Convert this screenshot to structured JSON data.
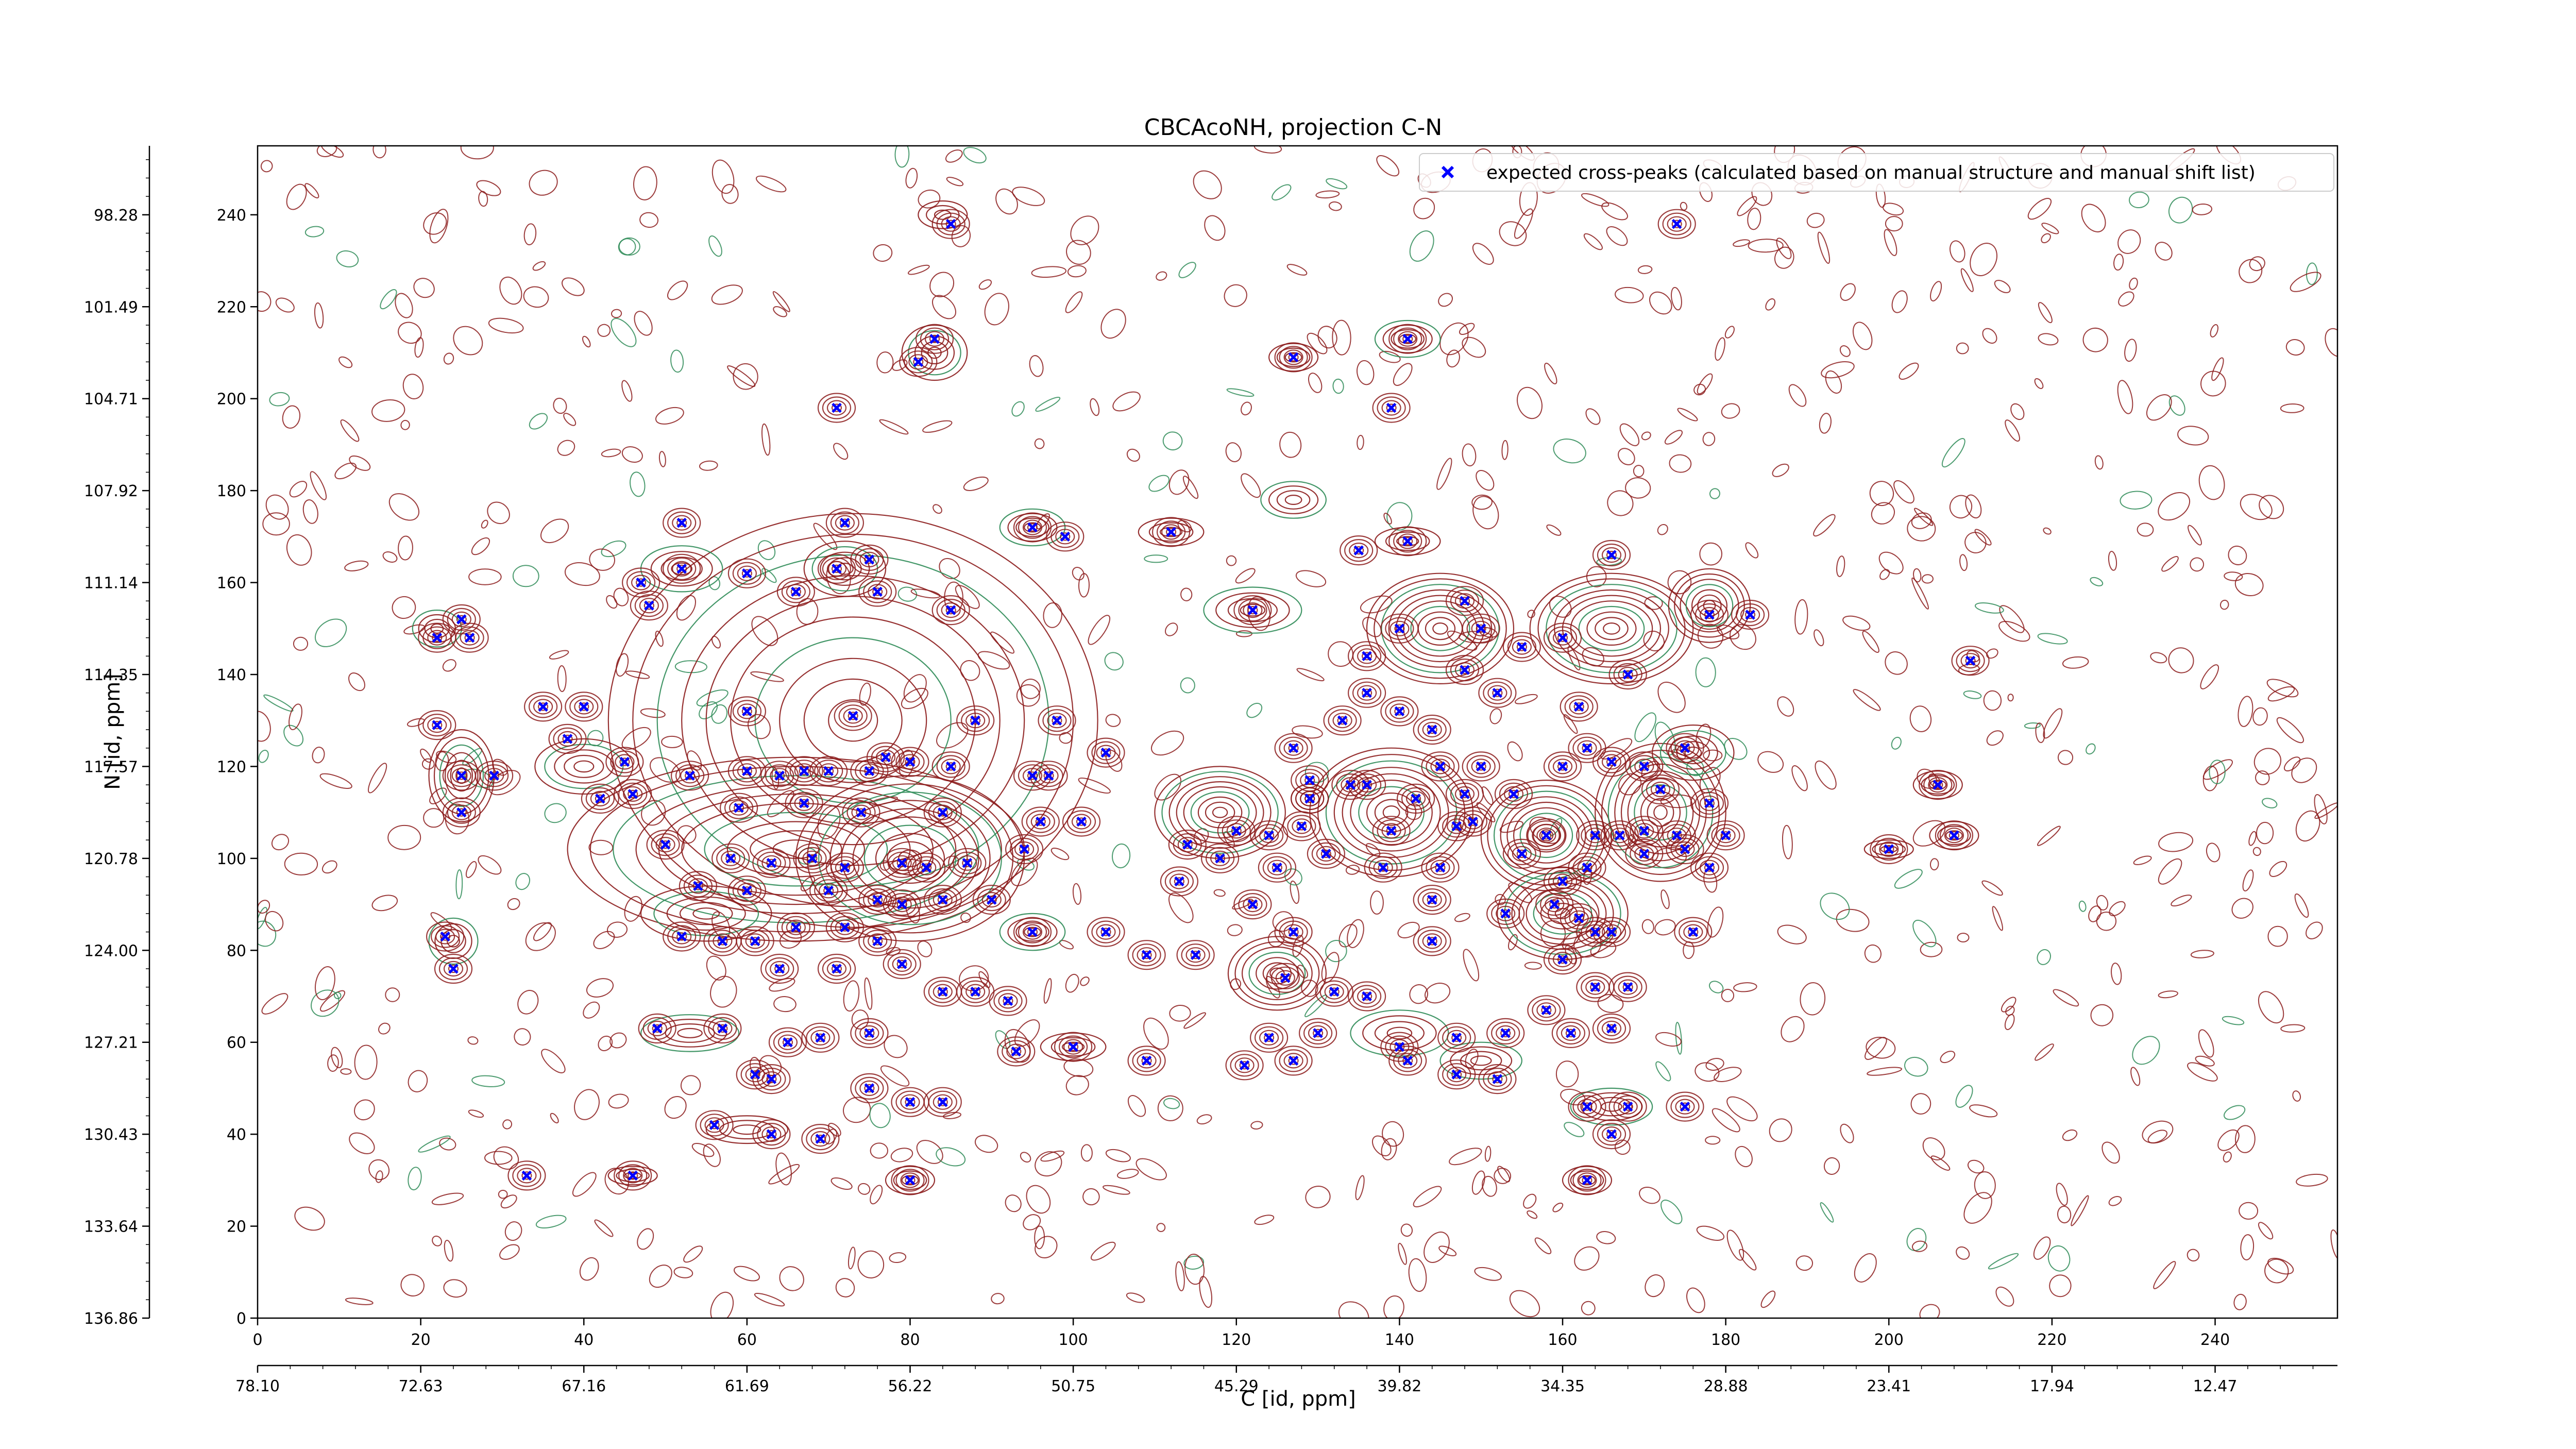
{
  "chart_data": {
    "type": "scatter",
    "title": "CBCAcoNH, projection C-N",
    "xlabel": "C [id, ppm]",
    "ylabel": "N [id, ppm]",
    "xlim": [
      0,
      255
    ],
    "ylim": [
      0,
      255
    ],
    "x_ticks": [
      0,
      20,
      40,
      60,
      80,
      100,
      120,
      140,
      160,
      180,
      200,
      220,
      240
    ],
    "y_ticks": [
      0,
      20,
      40,
      60,
      80,
      100,
      120,
      140,
      160,
      180,
      200,
      220,
      240
    ],
    "x_ppm_tick_labels": [
      "78.10",
      "72.63",
      "67.16",
      "61.69",
      "56.22",
      "50.75",
      "45.29",
      "39.82",
      "34.35",
      "28.88",
      "23.41",
      "17.94",
      "12.47"
    ],
    "y_ppm_tick_labels": [
      "136.86",
      "133.64",
      "130.43",
      "127.21",
      "124.00",
      "120.78",
      "117.57",
      "114.35",
      "111.14",
      "107.92",
      "104.71",
      "101.49",
      "98.28"
    ],
    "legend": {
      "label": "expected cross-peaks (calculated based on manual structure and manual shift list)",
      "position": "top-right"
    },
    "grid": false,
    "colors": {
      "peaks": "#0000ff",
      "contour_positive": "#8b1a1a",
      "contour_negative": "#2e8b57"
    },
    "series": [
      {
        "name": "expected cross-peaks (calculated based on manual structure and manual shift list)",
        "marker": "x",
        "points": [
          [
            85,
            238
          ],
          [
            174,
            238
          ],
          [
            83,
            213
          ],
          [
            81,
            208
          ],
          [
            141,
            213
          ],
          [
            127,
            209
          ],
          [
            71,
            198
          ],
          [
            139,
            198
          ],
          [
            52,
            173
          ],
          [
            72,
            173
          ],
          [
            95,
            172
          ],
          [
            112,
            171
          ],
          [
            75,
            165
          ],
          [
            135,
            167
          ],
          [
            141,
            169
          ],
          [
            166,
            166
          ],
          [
            52,
            163
          ],
          [
            71,
            163
          ],
          [
            60,
            162
          ],
          [
            47,
            160
          ],
          [
            48,
            155
          ],
          [
            66,
            158
          ],
          [
            76,
            158
          ],
          [
            122,
            154
          ],
          [
            85,
            154
          ],
          [
            25,
            152
          ],
          [
            22,
            148
          ],
          [
            26,
            148
          ],
          [
            35,
            133
          ],
          [
            60,
            132
          ],
          [
            73,
            131
          ],
          [
            88,
            130
          ],
          [
            98,
            130
          ],
          [
            40,
            133
          ],
          [
            45,
            121
          ],
          [
            53,
            118
          ],
          [
            60,
            119
          ],
          [
            64,
            118
          ],
          [
            67,
            119
          ],
          [
            70,
            119
          ],
          [
            75,
            119
          ],
          [
            80,
            121
          ],
          [
            85,
            120
          ],
          [
            95,
            118
          ],
          [
            97,
            118
          ],
          [
            22,
            129
          ],
          [
            25,
            118
          ],
          [
            29,
            118
          ],
          [
            38,
            126
          ],
          [
            46,
            114
          ],
          [
            42,
            113
          ],
          [
            59,
            111
          ],
          [
            67,
            112
          ],
          [
            74,
            110
          ],
          [
            84,
            110
          ],
          [
            96,
            108
          ],
          [
            101,
            108
          ],
          [
            120,
            106
          ],
          [
            128,
            107
          ],
          [
            139,
            106
          ],
          [
            149,
            108
          ],
          [
            158,
            105
          ],
          [
            164,
            105
          ],
          [
            167,
            105
          ],
          [
            174,
            105
          ],
          [
            180,
            105
          ],
          [
            25,
            110
          ],
          [
            50,
            103
          ],
          [
            58,
            100
          ],
          [
            63,
            99
          ],
          [
            68,
            100
          ],
          [
            72,
            98
          ],
          [
            79,
            99
          ],
          [
            82,
            98
          ],
          [
            87,
            99
          ],
          [
            94,
            102
          ],
          [
            114,
            103
          ],
          [
            125,
            98
          ],
          [
            138,
            98
          ],
          [
            145,
            98
          ],
          [
            155,
            101
          ],
          [
            163,
            98
          ],
          [
            170,
            101
          ],
          [
            175,
            102
          ],
          [
            54,
            94
          ],
          [
            60,
            93
          ],
          [
            70,
            93
          ],
          [
            76,
            91
          ],
          [
            79,
            90
          ],
          [
            84,
            91
          ],
          [
            90,
            91
          ],
          [
            122,
            90
          ],
          [
            144,
            91
          ],
          [
            159,
            90
          ],
          [
            153,
            88
          ],
          [
            164,
            84
          ],
          [
            52,
            83
          ],
          [
            57,
            82
          ],
          [
            61,
            82
          ],
          [
            66,
            85
          ],
          [
            72,
            85
          ],
          [
            76,
            82
          ],
          [
            95,
            84
          ],
          [
            104,
            84
          ],
          [
            127,
            84
          ],
          [
            144,
            82
          ],
          [
            176,
            84
          ],
          [
            23,
            83
          ],
          [
            24,
            76
          ],
          [
            64,
            76
          ],
          [
            71,
            76
          ],
          [
            79,
            77
          ],
          [
            84,
            71
          ],
          [
            88,
            71
          ],
          [
            92,
            69
          ],
          [
            109,
            79
          ],
          [
            115,
            79
          ],
          [
            126,
            74
          ],
          [
            132,
            71
          ],
          [
            136,
            70
          ],
          [
            49,
            63
          ],
          [
            57,
            63
          ],
          [
            65,
            60
          ],
          [
            69,
            61
          ],
          [
            75,
            62
          ],
          [
            100,
            59
          ],
          [
            124,
            61
          ],
          [
            130,
            62
          ],
          [
            140,
            59
          ],
          [
            147,
            61
          ],
          [
            153,
            62
          ],
          [
            161,
            62
          ],
          [
            166,
            63
          ],
          [
            109,
            56
          ],
          [
            121,
            55
          ],
          [
            127,
            56
          ],
          [
            141,
            56
          ],
          [
            147,
            53
          ],
          [
            152,
            52
          ],
          [
            61,
            53
          ],
          [
            63,
            52
          ],
          [
            75,
            50
          ],
          [
            80,
            47
          ],
          [
            84,
            47
          ],
          [
            168,
            46
          ],
          [
            163,
            46
          ],
          [
            175,
            46
          ],
          [
            56,
            42
          ],
          [
            63,
            40
          ],
          [
            69,
            39
          ],
          [
            33,
            31
          ],
          [
            46,
            31
          ],
          [
            80,
            30
          ],
          [
            163,
            30
          ],
          [
            93,
            58
          ],
          [
            166,
            40
          ],
          [
            168,
            72
          ],
          [
            99,
            170
          ],
          [
            77,
            122
          ],
          [
            104,
            123
          ],
          [
            129,
            113
          ],
          [
            131,
            101
          ],
          [
            147,
            107
          ],
          [
            150,
            150
          ],
          [
            148,
            156
          ],
          [
            160,
            148
          ],
          [
            155,
            146
          ],
          [
            162,
            133
          ],
          [
            163,
            124
          ],
          [
            166,
            121
          ],
          [
            170,
            120
          ],
          [
            175,
            124
          ],
          [
            178,
            112
          ],
          [
            160,
            120
          ],
          [
            170,
            106
          ],
          [
            178,
            98
          ],
          [
            160,
            95
          ],
          [
            162,
            87
          ],
          [
            166,
            84
          ],
          [
            160,
            78
          ],
          [
            164,
            72
          ],
          [
            158,
            67
          ],
          [
            172,
            115
          ],
          [
            168,
            140
          ],
          [
            178,
            153
          ],
          [
            183,
            153
          ],
          [
            206,
            116
          ],
          [
            208,
            105
          ],
          [
            200,
            102
          ],
          [
            210,
            143
          ],
          [
            140,
            150
          ],
          [
            136,
            144
          ],
          [
            148,
            141
          ],
          [
            152,
            136
          ],
          [
            144,
            128
          ],
          [
            140,
            132
          ],
          [
            136,
            136
          ],
          [
            133,
            130
          ],
          [
            127,
            124
          ],
          [
            129,
            117
          ],
          [
            134,
            116
          ],
          [
            145,
            120
          ],
          [
            150,
            120
          ],
          [
            154,
            114
          ],
          [
            148,
            114
          ],
          [
            142,
            113
          ],
          [
            136,
            116
          ],
          [
            129,
            113
          ],
          [
            124,
            105
          ],
          [
            118,
            100
          ],
          [
            113,
            95
          ]
        ]
      }
    ],
    "contours": [
      {
        "cx": 73,
        "cy": 130,
        "rx": 30,
        "ry": 45
      },
      {
        "cx": 66,
        "cy": 102,
        "rx": 28,
        "ry": 20
      },
      {
        "cx": 80,
        "cy": 100,
        "rx": 14,
        "ry": 18
      },
      {
        "cx": 55,
        "cy": 88,
        "rx": 8,
        "ry": 6
      },
      {
        "cx": 52,
        "cy": 163,
        "rx": 5,
        "ry": 5
      },
      {
        "cx": 72,
        "cy": 163,
        "rx": 5,
        "ry": 6
      },
      {
        "cx": 84,
        "cy": 240,
        "rx": 3,
        "ry": 3
      },
      {
        "cx": 83,
        "cy": 210,
        "rx": 4,
        "ry": 6
      },
      {
        "cx": 141,
        "cy": 213,
        "rx": 4,
        "ry": 4
      },
      {
        "cx": 127,
        "cy": 209,
        "rx": 3,
        "ry": 3
      },
      {
        "cx": 127,
        "cy": 178,
        "rx": 4,
        "ry": 4
      },
      {
        "cx": 95,
        "cy": 172,
        "rx": 4,
        "ry": 4
      },
      {
        "cx": 112,
        "cy": 171,
        "rx": 4,
        "ry": 3
      },
      {
        "cx": 141,
        "cy": 169,
        "rx": 4,
        "ry": 3
      },
      {
        "cx": 122,
        "cy": 154,
        "rx": 6,
        "ry": 5
      },
      {
        "cx": 145,
        "cy": 150,
        "rx": 9,
        "ry": 12
      },
      {
        "cx": 166,
        "cy": 150,
        "rx": 10,
        "ry": 12
      },
      {
        "cx": 178,
        "cy": 155,
        "rx": 5,
        "ry": 8
      },
      {
        "cx": 118,
        "cy": 110,
        "rx": 8,
        "ry": 10
      },
      {
        "cx": 139,
        "cy": 110,
        "rx": 10,
        "ry": 14
      },
      {
        "cx": 158,
        "cy": 105,
        "rx": 8,
        "ry": 12
      },
      {
        "cx": 172,
        "cy": 110,
        "rx": 8,
        "ry": 15
      },
      {
        "cx": 176,
        "cy": 123,
        "rx": 5,
        "ry": 6
      },
      {
        "cx": 160,
        "cy": 88,
        "rx": 8,
        "ry": 10
      },
      {
        "cx": 125,
        "cy": 75,
        "rx": 6,
        "ry": 8
      },
      {
        "cx": 140,
        "cy": 62,
        "rx": 6,
        "ry": 5
      },
      {
        "cx": 150,
        "cy": 56,
        "rx": 5,
        "ry": 4
      },
      {
        "cx": 166,
        "cy": 46,
        "rx": 5,
        "ry": 4
      },
      {
        "cx": 95,
        "cy": 84,
        "rx": 4,
        "ry": 4
      },
      {
        "cx": 24,
        "cy": 82,
        "rx": 3,
        "ry": 5
      },
      {
        "cx": 25,
        "cy": 118,
        "rx": 4,
        "ry": 10
      },
      {
        "cx": 40,
        "cy": 120,
        "rx": 6,
        "ry": 6
      },
      {
        "cx": 22,
        "cy": 150,
        "rx": 3,
        "ry": 4
      },
      {
        "cx": 206,
        "cy": 116,
        "rx": 3,
        "ry": 3
      },
      {
        "cx": 208,
        "cy": 105,
        "rx": 3,
        "ry": 3
      },
      {
        "cx": 200,
        "cy": 102,
        "rx": 3,
        "ry": 2
      },
      {
        "cx": 80,
        "cy": 30,
        "rx": 3,
        "ry": 3
      },
      {
        "cx": 163,
        "cy": 30,
        "rx": 3,
        "ry": 3
      },
      {
        "cx": 46,
        "cy": 31,
        "rx": 3,
        "ry": 2
      },
      {
        "cx": 60,
        "cy": 41,
        "rx": 5,
        "ry": 3
      },
      {
        "cx": 53,
        "cy": 62,
        "rx": 6,
        "ry": 4
      },
      {
        "cx": 100,
        "cy": 59,
        "rx": 4,
        "ry": 3
      }
    ]
  }
}
